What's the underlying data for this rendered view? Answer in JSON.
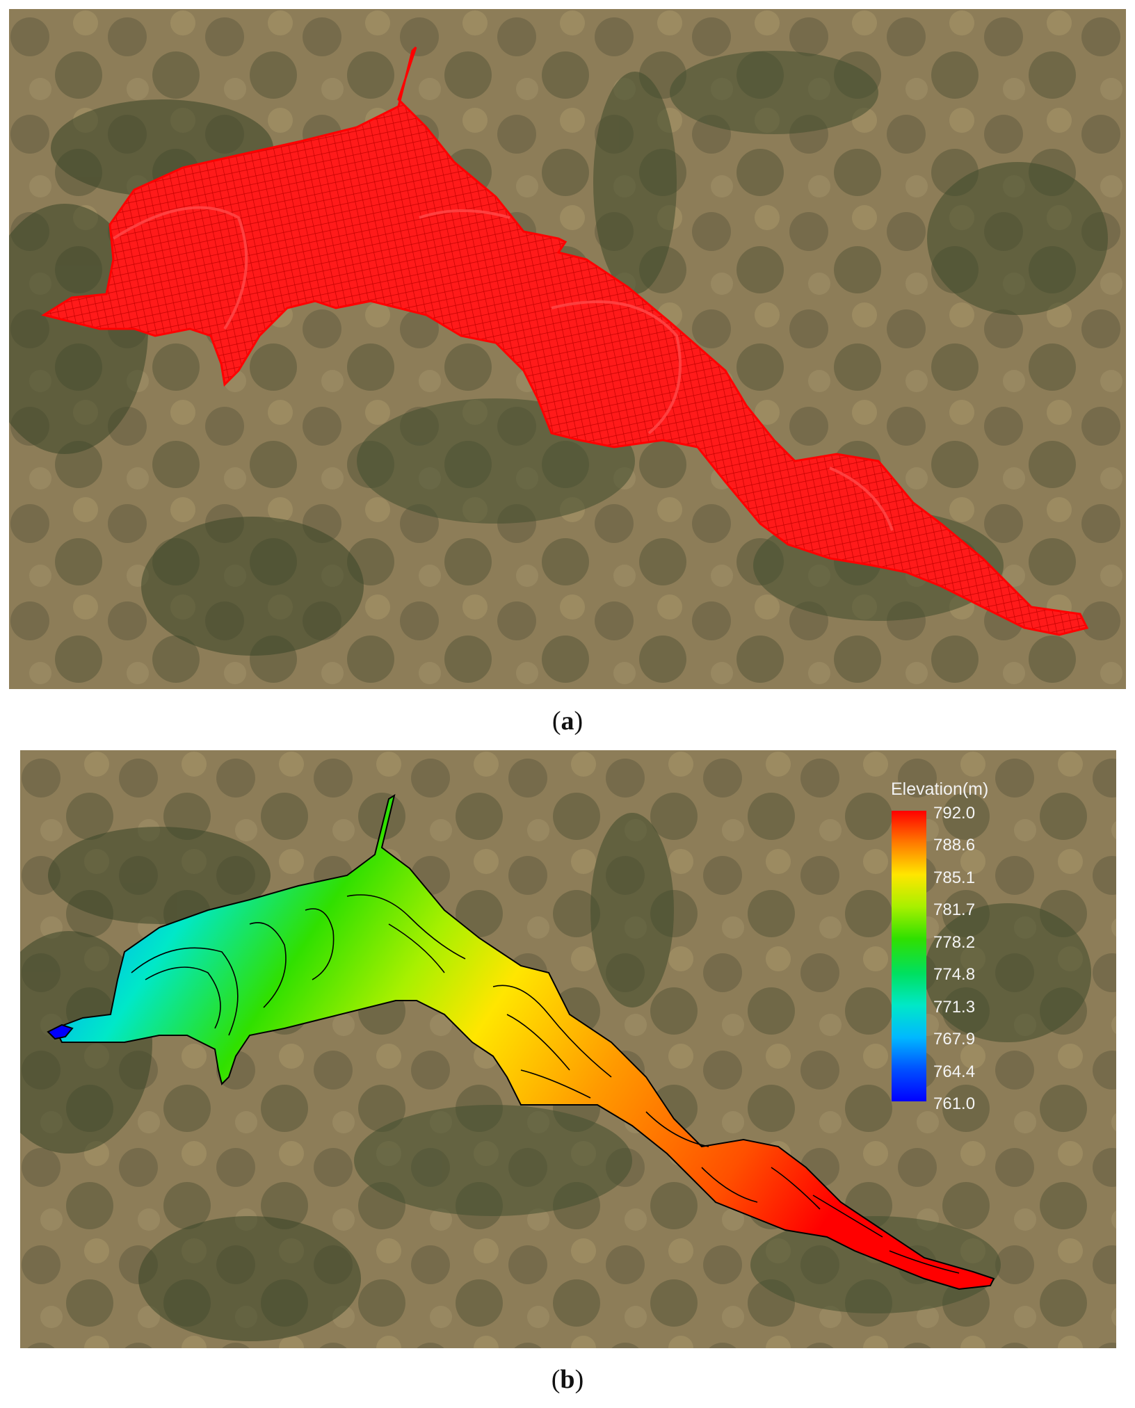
{
  "figure": {
    "panels": [
      {
        "id": "a",
        "caption": "a",
        "content": "computational mesh over satellite imagery"
      },
      {
        "id": "b",
        "caption": "b",
        "content": "elevation contour map over satellite imagery"
      }
    ]
  },
  "legend": {
    "title": "Elevation(m)",
    "labels": [
      "792.0",
      "788.6",
      "785.1",
      "781.7",
      "778.2",
      "774.8",
      "771.3",
      "767.9",
      "764.4",
      "761.0"
    ],
    "colors": [
      "#ff0000",
      "#ff7a00",
      "#ffe600",
      "#a8f000",
      "#30e000",
      "#00e060",
      "#00e8c8",
      "#00b8ff",
      "#0050ff",
      "#0000ff"
    ]
  },
  "colors": {
    "mesh": "#ff1a1a",
    "terrain_base": "#8a7a55",
    "vegetation": "#3f4b2c"
  }
}
